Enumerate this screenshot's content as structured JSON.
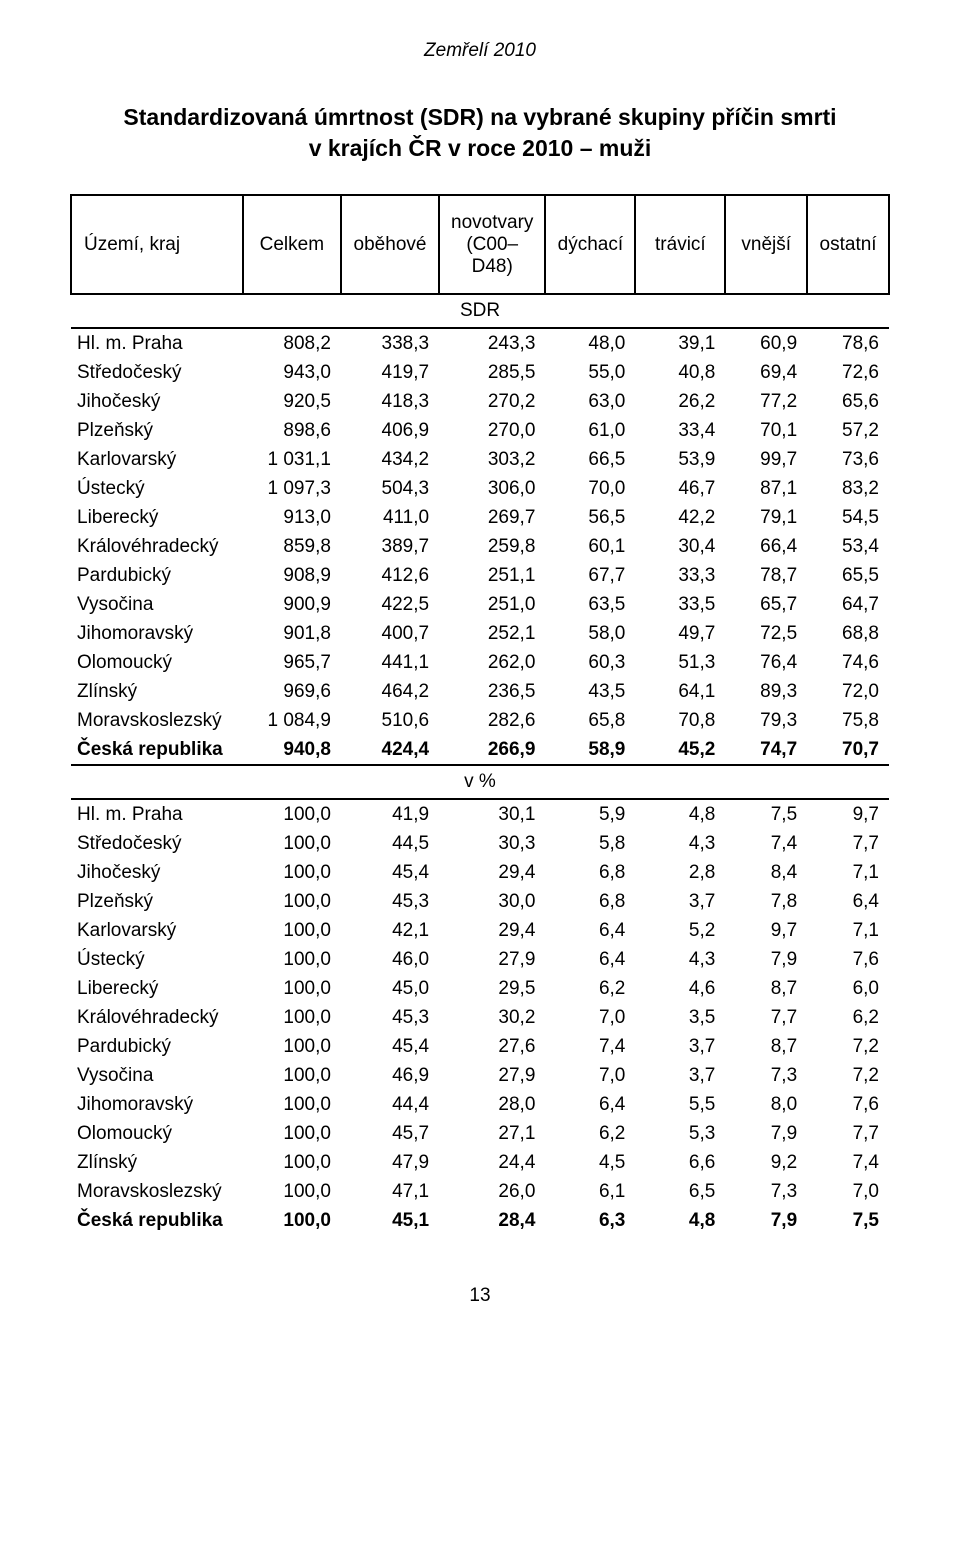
{
  "header": "Zemřelí 2010",
  "title_line1": "Standardizovaná úmrtnost (SDR) na vybrané skupiny příčin smrti",
  "title_line2": "v krajích ČR v roce 2010 – muži",
  "columns": [
    "Území, kraj",
    "Celkem",
    "oběhové",
    "novotvary (C00–D48)",
    "dýchací",
    "trávicí",
    "vnější",
    "ostatní"
  ],
  "section1_label": "SDR",
  "section2_label": "v %",
  "page_number": "13",
  "rows_sdr": [
    {
      "region": "Hl. m. Praha",
      "v": [
        "808,2",
        "338,3",
        "243,3",
        "48,0",
        "39,1",
        "60,9",
        "78,6"
      ],
      "bold": false
    },
    {
      "region": "Středočeský",
      "v": [
        "943,0",
        "419,7",
        "285,5",
        "55,0",
        "40,8",
        "69,4",
        "72,6"
      ],
      "bold": false
    },
    {
      "region": "Jihočeský",
      "v": [
        "920,5",
        "418,3",
        "270,2",
        "63,0",
        "26,2",
        "77,2",
        "65,6"
      ],
      "bold": false
    },
    {
      "region": "Plzeňský",
      "v": [
        "898,6",
        "406,9",
        "270,0",
        "61,0",
        "33,4",
        "70,1",
        "57,2"
      ],
      "bold": false
    },
    {
      "region": "Karlovarský",
      "v": [
        "1 031,1",
        "434,2",
        "303,2",
        "66,5",
        "53,9",
        "99,7",
        "73,6"
      ],
      "bold": false
    },
    {
      "region": "Ústecký",
      "v": [
        "1 097,3",
        "504,3",
        "306,0",
        "70,0",
        "46,7",
        "87,1",
        "83,2"
      ],
      "bold": false
    },
    {
      "region": "Liberecký",
      "v": [
        "913,0",
        "411,0",
        "269,7",
        "56,5",
        "42,2",
        "79,1",
        "54,5"
      ],
      "bold": false
    },
    {
      "region": "Královéhradecký",
      "v": [
        "859,8",
        "389,7",
        "259,8",
        "60,1",
        "30,4",
        "66,4",
        "53,4"
      ],
      "bold": false
    },
    {
      "region": "Pardubický",
      "v": [
        "908,9",
        "412,6",
        "251,1",
        "67,7",
        "33,3",
        "78,7",
        "65,5"
      ],
      "bold": false
    },
    {
      "region": "Vysočina",
      "v": [
        "900,9",
        "422,5",
        "251,0",
        "63,5",
        "33,5",
        "65,7",
        "64,7"
      ],
      "bold": false
    },
    {
      "region": "Jihomoravský",
      "v": [
        "901,8",
        "400,7",
        "252,1",
        "58,0",
        "49,7",
        "72,5",
        "68,8"
      ],
      "bold": false
    },
    {
      "region": "Olomoucký",
      "v": [
        "965,7",
        "441,1",
        "262,0",
        "60,3",
        "51,3",
        "76,4",
        "74,6"
      ],
      "bold": false
    },
    {
      "region": "Zlínský",
      "v": [
        "969,6",
        "464,2",
        "236,5",
        "43,5",
        "64,1",
        "89,3",
        "72,0"
      ],
      "bold": false
    },
    {
      "region": "Moravskoslezský",
      "v": [
        "1 084,9",
        "510,6",
        "282,6",
        "65,8",
        "70,8",
        "79,3",
        "75,8"
      ],
      "bold": false
    },
    {
      "region": "Česká republika",
      "v": [
        "940,8",
        "424,4",
        "266,9",
        "58,9",
        "45,2",
        "74,7",
        "70,7"
      ],
      "bold": true
    }
  ],
  "rows_pct": [
    {
      "region": "Hl. m. Praha",
      "v": [
        "100,0",
        "41,9",
        "30,1",
        "5,9",
        "4,8",
        "7,5",
        "9,7"
      ],
      "bold": false
    },
    {
      "region": "Středočeský",
      "v": [
        "100,0",
        "44,5",
        "30,3",
        "5,8",
        "4,3",
        "7,4",
        "7,7"
      ],
      "bold": false
    },
    {
      "region": "Jihočeský",
      "v": [
        "100,0",
        "45,4",
        "29,4",
        "6,8",
        "2,8",
        "8,4",
        "7,1"
      ],
      "bold": false
    },
    {
      "region": "Plzeňský",
      "v": [
        "100,0",
        "45,3",
        "30,0",
        "6,8",
        "3,7",
        "7,8",
        "6,4"
      ],
      "bold": false
    },
    {
      "region": "Karlovarský",
      "v": [
        "100,0",
        "42,1",
        "29,4",
        "6,4",
        "5,2",
        "9,7",
        "7,1"
      ],
      "bold": false
    },
    {
      "region": "Ústecký",
      "v": [
        "100,0",
        "46,0",
        "27,9",
        "6,4",
        "4,3",
        "7,9",
        "7,6"
      ],
      "bold": false
    },
    {
      "region": "Liberecký",
      "v": [
        "100,0",
        "45,0",
        "29,5",
        "6,2",
        "4,6",
        "8,7",
        "6,0"
      ],
      "bold": false
    },
    {
      "region": "Královéhradecký",
      "v": [
        "100,0",
        "45,3",
        "30,2",
        "7,0",
        "3,5",
        "7,7",
        "6,2"
      ],
      "bold": false
    },
    {
      "region": "Pardubický",
      "v": [
        "100,0",
        "45,4",
        "27,6",
        "7,4",
        "3,7",
        "8,7",
        "7,2"
      ],
      "bold": false
    },
    {
      "region": "Vysočina",
      "v": [
        "100,0",
        "46,9",
        "27,9",
        "7,0",
        "3,7",
        "7,3",
        "7,2"
      ],
      "bold": false
    },
    {
      "region": "Jihomoravský",
      "v": [
        "100,0",
        "44,4",
        "28,0",
        "6,4",
        "5,5",
        "8,0",
        "7,6"
      ],
      "bold": false
    },
    {
      "region": "Olomoucký",
      "v": [
        "100,0",
        "45,7",
        "27,1",
        "6,2",
        "5,3",
        "7,9",
        "7,7"
      ],
      "bold": false
    },
    {
      "region": "Zlínský",
      "v": [
        "100,0",
        "47,9",
        "24,4",
        "4,5",
        "6,6",
        "9,2",
        "7,4"
      ],
      "bold": false
    },
    {
      "region": "Moravskoslezský",
      "v": [
        "100,0",
        "47,1",
        "26,0",
        "6,1",
        "6,5",
        "7,3",
        "7,0"
      ],
      "bold": false
    },
    {
      "region": "Česká republika",
      "v": [
        "100,0",
        "45,1",
        "28,4",
        "6,3",
        "4,8",
        "7,9",
        "7,5"
      ],
      "bold": true
    }
  ]
}
